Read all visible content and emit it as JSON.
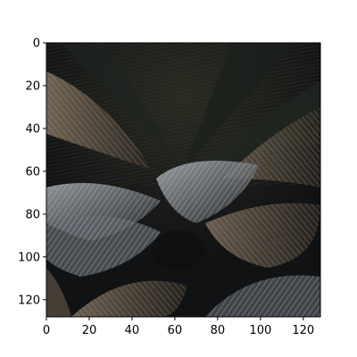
{
  "figure": {
    "image_subject": "palm-fronds-photo",
    "x_axis": {
      "ticks": [
        "0",
        "20",
        "40",
        "60",
        "80",
        "100",
        "120"
      ],
      "tick_values": [
        0,
        20,
        40,
        60,
        80,
        100,
        120
      ],
      "range": [
        0,
        128
      ]
    },
    "y_axis": {
      "ticks": [
        "0",
        "20",
        "40",
        "60",
        "80",
        "100",
        "120"
      ],
      "tick_values": [
        0,
        20,
        40,
        60,
        80,
        100,
        120
      ],
      "range": [
        0,
        128
      ],
      "inverted": true
    },
    "colors": {
      "background": "#ffffff",
      "frame": "#000000",
      "photo_dark": "#15171a",
      "frond_light": "#9aa3ab",
      "frond_warm": "#7c6a58",
      "frond_green": "#3a4a34"
    }
  }
}
